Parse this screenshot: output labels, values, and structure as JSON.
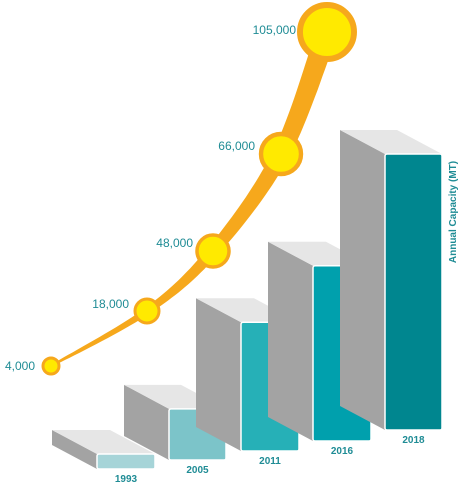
{
  "chart_data": {
    "type": "bar",
    "categories": [
      "1993",
      "2005",
      "2011",
      "2016",
      "2018"
    ],
    "values": [
      4000,
      18000,
      48000,
      66000,
      105000
    ],
    "value_labels": [
      "4,000",
      "18,000",
      "48,000",
      "66,000",
      "105,000"
    ],
    "title": "",
    "xlabel": "",
    "ylabel": "Annual Capacity (MT)",
    "grid": false,
    "legend": "none",
    "bar_colors": [
      "#a6d4d8",
      "#7cc4c9",
      "#26b0b7",
      "#00a0ad",
      "#00868f"
    ],
    "bar_side_color": "#a3a3a3",
    "bar_top_color": "#e6e6e6",
    "curve_color": "#f6a81c",
    "marker_fill": "#ffea00",
    "marker_stroke": "#f6a81c",
    "label_color": "#1f8c95"
  }
}
